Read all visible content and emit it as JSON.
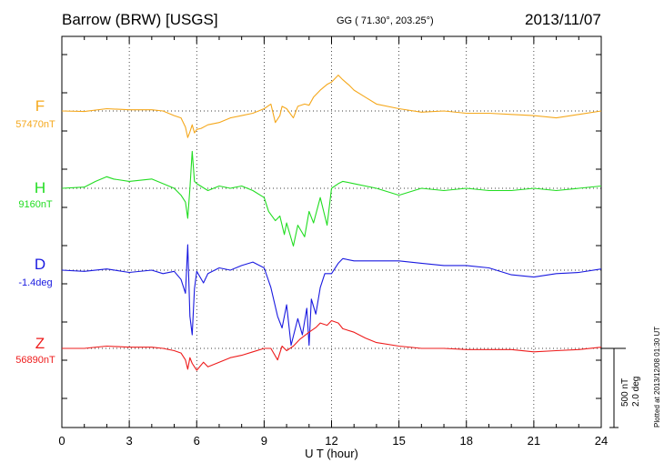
{
  "header": {
    "title": "Barrow (BRW)  [USGS]",
    "coords": "GG ( 71.30°, 203.25°)",
    "date": "2013/11/07"
  },
  "footer": {
    "plotted": "Plotted at 2013/12/08 01:30 UT",
    "scale_nt": "500 nT",
    "scale_deg": "2.0 deg"
  },
  "chart_data": {
    "type": "line",
    "xlabel": "U T (hour)",
    "xlim": [
      0,
      24
    ],
    "xticks": [
      0,
      3,
      6,
      9,
      12,
      15,
      18,
      21,
      24
    ],
    "grid": true,
    "series": [
      {
        "name": "F",
        "baseline_label": "57470nT",
        "color": "#f5a81c",
        "x": [
          0,
          1,
          2,
          3,
          4,
          4.5,
          5,
          5.3,
          5.5,
          5.6,
          5.7,
          5.8,
          5.9,
          6,
          6.2,
          6.5,
          7,
          7.5,
          8,
          8.5,
          9,
          9.3,
          9.5,
          9.7,
          9.8,
          10,
          10.3,
          10.5,
          10.8,
          11,
          11.2,
          11.5,
          11.8,
          12,
          12.3,
          12.5,
          12.8,
          13,
          13.5,
          14,
          15,
          16,
          17,
          18,
          19,
          20,
          21,
          22,
          23,
          24
        ],
        "y": [
          0,
          -5,
          20,
          10,
          10,
          0,
          -40,
          -60,
          -140,
          -230,
          -180,
          -120,
          -190,
          -160,
          -150,
          -120,
          -100,
          -60,
          -40,
          -20,
          20,
          60,
          -100,
          -40,
          40,
          20,
          -60,
          40,
          60,
          50,
          120,
          180,
          230,
          250,
          310,
          270,
          220,
          180,
          120,
          60,
          20,
          -10,
          0,
          -20,
          -20,
          -30,
          -40,
          -60,
          -30,
          0
        ]
      },
      {
        "name": "H",
        "baseline_label": "9160nT",
        "color": "#22dd22",
        "x": [
          0,
          1,
          1.5,
          2,
          2.3,
          3,
          4,
          4.5,
          5,
          5.3,
          5.5,
          5.6,
          5.7,
          5.8,
          5.9,
          6,
          6.5,
          7,
          7.5,
          8,
          8.5,
          9,
          9.2,
          9.5,
          9.7,
          9.9,
          10,
          10.3,
          10.5,
          10.8,
          11,
          11.2,
          11.5,
          11.8,
          12,
          12.3,
          12.5,
          13,
          14,
          15,
          16,
          17,
          18,
          19,
          20,
          21,
          22,
          23,
          24
        ],
        "y": [
          0,
          10,
          60,
          100,
          80,
          60,
          80,
          40,
          0,
          -60,
          -120,
          -260,
          0,
          320,
          60,
          40,
          -20,
          20,
          0,
          20,
          -20,
          -80,
          -200,
          -280,
          -240,
          -400,
          -300,
          -500,
          -320,
          -420,
          -200,
          -300,
          -80,
          -320,
          0,
          40,
          60,
          40,
          0,
          -60,
          0,
          -20,
          0,
          -20,
          -20,
          0,
          -20,
          0,
          20
        ]
      },
      {
        "name": "D",
        "baseline_label": "-1.4deg",
        "color": "#1a1ae0",
        "x": [
          0,
          1,
          2,
          3,
          4,
          4.5,
          5,
          5.3,
          5.5,
          5.6,
          5.7,
          5.8,
          5.9,
          6,
          6.3,
          6.5,
          7,
          7.5,
          8,
          8.5,
          9,
          9.3,
          9.6,
          9.8,
          10,
          10.2,
          10.5,
          10.7,
          10.9,
          11,
          11.1,
          11.3,
          11.5,
          11.7,
          12,
          12.3,
          12.5,
          13,
          14,
          15,
          16,
          17,
          18,
          19,
          20,
          21,
          22,
          23,
          24
        ],
        "y": [
          0,
          -10,
          10,
          -20,
          0,
          -30,
          -10,
          -80,
          -200,
          220,
          -400,
          -560,
          -160,
          -10,
          -110,
          -30,
          20,
          0,
          40,
          70,
          20,
          -150,
          -400,
          -500,
          -300,
          -650,
          -420,
          -560,
          -330,
          -650,
          -250,
          -380,
          -150,
          -30,
          -30,
          60,
          100,
          80,
          80,
          80,
          60,
          40,
          40,
          20,
          -40,
          -60,
          -30,
          -20,
          10
        ]
      },
      {
        "name": "Z",
        "baseline_label": "56890nT",
        "color": "#ee1c1c",
        "x": [
          0,
          1,
          2,
          3,
          4,
          4.5,
          5,
          5.3,
          5.5,
          5.6,
          5.7,
          5.8,
          5.9,
          6,
          6.3,
          6.5,
          7,
          7.5,
          8,
          8.5,
          9,
          9.3,
          9.6,
          9.8,
          10,
          10.3,
          10.6,
          11,
          11.3,
          11.5,
          11.8,
          12,
          12.3,
          12.5,
          13,
          13.5,
          14,
          15,
          16,
          17,
          18,
          19,
          20,
          21,
          22,
          23,
          24
        ],
        "y": [
          0,
          0,
          20,
          10,
          10,
          0,
          -20,
          -40,
          -100,
          -180,
          -80,
          -130,
          -160,
          -190,
          -120,
          -160,
          -120,
          -80,
          -60,
          -30,
          0,
          0,
          -100,
          20,
          -20,
          20,
          80,
          140,
          180,
          220,
          200,
          240,
          220,
          170,
          140,
          90,
          50,
          20,
          0,
          0,
          -10,
          -10,
          -10,
          -30,
          -20,
          -10,
          10
        ]
      }
    ]
  }
}
